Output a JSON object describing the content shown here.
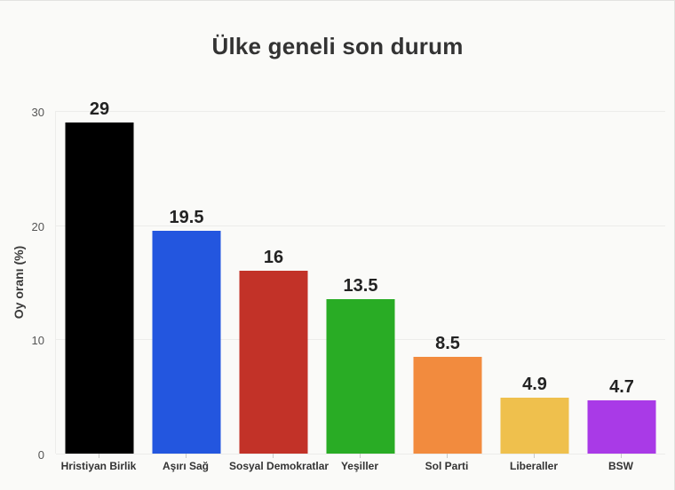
{
  "title": "Ülke geneli son durum",
  "chart_data": {
    "type": "bar",
    "title": "Ülke geneli son durum",
    "ylabel": "Oy oranı (%)",
    "xlabel": "",
    "categories": [
      "Hristiyan Birlik",
      "Aşırı Sağ",
      "Sosyal Demokratlar",
      "Yeşiller",
      "Sol Parti",
      "Liberaller",
      "BSW"
    ],
    "values": [
      29,
      19.5,
      16,
      13.5,
      8.5,
      4.9,
      4.7
    ],
    "value_labels": [
      "29",
      "19.5",
      "16",
      "13.5",
      "8.5",
      "4.9",
      "4.7"
    ],
    "bar_colors": [
      "#000000",
      "#2356df",
      "#c23228",
      "#29ac25",
      "#f28b3e",
      "#efc04d",
      "#a93ae7"
    ],
    "yticks": [
      0,
      10,
      20,
      30
    ],
    "ylim": [
      0,
      30
    ],
    "grid": true,
    "legend": "none"
  },
  "colors": {
    "background": "#fafaf8",
    "gridline": "#ececea",
    "axis_text": "#555555",
    "category_text": "#333333",
    "value_text": "#222222",
    "frame_border": "#e3e3e1"
  }
}
